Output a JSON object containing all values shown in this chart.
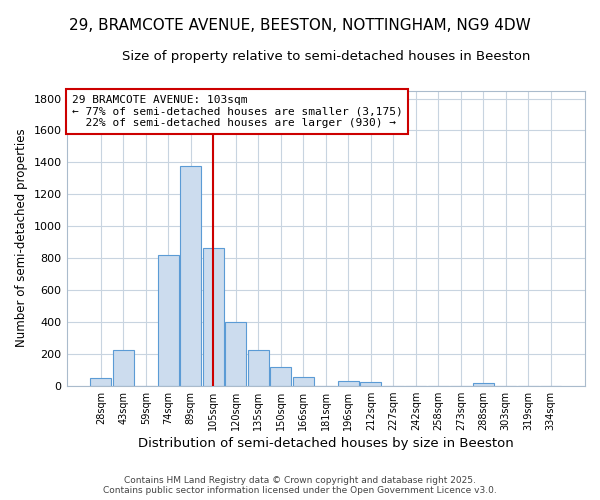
{
  "title_line1": "29, BRAMCOTE AVENUE, BEESTON, NOTTINGHAM, NG9 4DW",
  "title_line2": "Size of property relative to semi-detached houses in Beeston",
  "xlabel": "Distribution of semi-detached houses by size in Beeston",
  "ylabel": "Number of semi-detached properties",
  "categories": [
    "28sqm",
    "43sqm",
    "59sqm",
    "74sqm",
    "89sqm",
    "105sqm",
    "120sqm",
    "135sqm",
    "150sqm",
    "166sqm",
    "181sqm",
    "196sqm",
    "212sqm",
    "227sqm",
    "242sqm",
    "258sqm",
    "273sqm",
    "288sqm",
    "303sqm",
    "319sqm",
    "334sqm"
  ],
  "values": [
    50,
    225,
    0,
    820,
    1380,
    860,
    400,
    225,
    115,
    55,
    0,
    30,
    25,
    0,
    0,
    0,
    0,
    15,
    0,
    0,
    0
  ],
  "bar_color": "#ccdcee",
  "bar_edge_color": "#5b9bd5",
  "grid_color": "#c8d4e0",
  "vline_x_idx": 5,
  "vline_color": "#cc0000",
  "annotation_line1": "29 BRAMCOTE AVENUE: 103sqm",
  "annotation_line2": "← 77% of semi-detached houses are smaller (3,175)",
  "annotation_line3": "  22% of semi-detached houses are larger (930) →",
  "annotation_box_color": "#cc0000",
  "ylim": [
    0,
    1850
  ],
  "yticks": [
    0,
    200,
    400,
    600,
    800,
    1000,
    1200,
    1400,
    1600,
    1800
  ],
  "footer_line1": "Contains HM Land Registry data © Crown copyright and database right 2025.",
  "footer_line2": "Contains public sector information licensed under the Open Government Licence v3.0.",
  "bg_color": "#ffffff",
  "title_fontsize": 11,
  "subtitle_fontsize": 9.5
}
